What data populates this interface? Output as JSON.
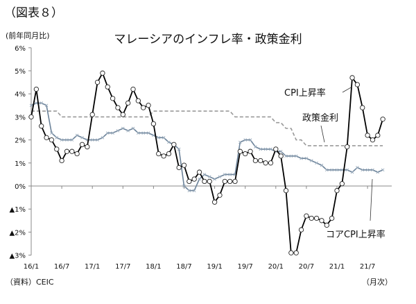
{
  "figure_label": "（図表８）",
  "chart_data": {
    "type": "line",
    "title": "マレーシアのインフレ率・政策金利",
    "ylabel": "(前年同月比)",
    "xlabel": "（月次）",
    "source": "（資料）CEIC",
    "ylim": [
      -3,
      6
    ],
    "yticks": [
      6,
      5,
      4,
      3,
      2,
      1,
      0,
      -1,
      -2,
      -3
    ],
    "ytick_labels": [
      "6%",
      "5%",
      "4%",
      "3%",
      "2%",
      "1%",
      "0%",
      "▲1%",
      "▲2%",
      "▲3%"
    ],
    "x_start": "2016/1",
    "xtick_labels": [
      "16/1",
      "16/7",
      "17/1",
      "17/7",
      "18/1",
      "18/7",
      "19/1",
      "19/7",
      "20/1",
      "20/7",
      "21/1",
      "21/7"
    ],
    "grid": false,
    "series": [
      {
        "name": "CPI上昇率",
        "color": "#000000",
        "marker": "circle",
        "values": [
          3.0,
          4.2,
          2.6,
          2.1,
          2.0,
          1.6,
          1.1,
          1.5,
          1.5,
          1.4,
          1.8,
          1.7,
          3.1,
          4.5,
          4.9,
          4.3,
          3.8,
          3.4,
          3.1,
          3.6,
          4.2,
          3.7,
          3.4,
          3.5,
          2.7,
          1.4,
          1.3,
          1.4,
          1.8,
          0.8,
          0.9,
          0.2,
          0.3,
          0.6,
          0.2,
          0.2,
          -0.7,
          -0.4,
          0.2,
          0.2,
          0.2,
          1.5,
          1.4,
          1.5,
          1.1,
          1.1,
          1.0,
          1.0,
          1.6,
          1.3,
          -0.2,
          -2.9,
          -2.9,
          -1.9,
          -1.3,
          -1.4,
          -1.4,
          -1.5,
          -1.7,
          -1.4,
          -0.2,
          0.1,
          1.7,
          4.7,
          4.4,
          3.4,
          2.2,
          2.0,
          2.2,
          2.9
        ]
      },
      {
        "name": "コアCPI上昇率",
        "color": "#6b8299",
        "marker": "x",
        "values": [
          3.5,
          3.6,
          3.6,
          3.5,
          2.3,
          2.1,
          2.0,
          2.0,
          2.0,
          2.2,
          2.1,
          2.0,
          2.0,
          2.0,
          2.1,
          2.3,
          2.3,
          2.4,
          2.5,
          2.4,
          2.5,
          2.3,
          2.3,
          2.3,
          2.2,
          2.1,
          2.1,
          1.9,
          1.8,
          1.6,
          0.0,
          -0.2,
          -0.2,
          0.3,
          0.5,
          0.4,
          0.3,
          0.4,
          0.5,
          0.5,
          0.5,
          1.9,
          2.0,
          2.0,
          1.7,
          1.6,
          1.6,
          1.6,
          1.5,
          1.5,
          1.3,
          1.3,
          1.3,
          1.2,
          1.2,
          1.1,
          1.0,
          0.9,
          0.7,
          0.7,
          0.7,
          0.7,
          0.7,
          0.6,
          0.8,
          0.7,
          0.7,
          0.7,
          0.6,
          0.7
        ]
      },
      {
        "name": "政策金利",
        "color": "#999999",
        "marker": "none",
        "dash": true,
        "values": [
          3.25,
          3.25,
          3.25,
          3.25,
          3.25,
          3.25,
          3.0,
          3.0,
          3.0,
          3.0,
          3.0,
          3.0,
          3.0,
          3.0,
          3.0,
          3.0,
          3.0,
          3.0,
          3.0,
          3.0,
          3.0,
          3.0,
          3.0,
          3.0,
          3.25,
          3.25,
          3.25,
          3.25,
          3.25,
          3.25,
          3.25,
          3.25,
          3.25,
          3.25,
          3.25,
          3.25,
          3.25,
          3.25,
          3.25,
          3.25,
          3.0,
          3.0,
          3.0,
          3.0,
          3.0,
          3.0,
          3.0,
          3.0,
          2.75,
          2.75,
          2.5,
          2.5,
          2.0,
          2.0,
          1.75,
          1.75,
          1.75,
          1.75,
          1.75,
          1.75,
          1.75,
          1.75,
          1.75,
          1.75,
          1.75,
          1.75,
          1.75,
          1.75,
          1.75,
          1.75
        ]
      }
    ]
  }
}
